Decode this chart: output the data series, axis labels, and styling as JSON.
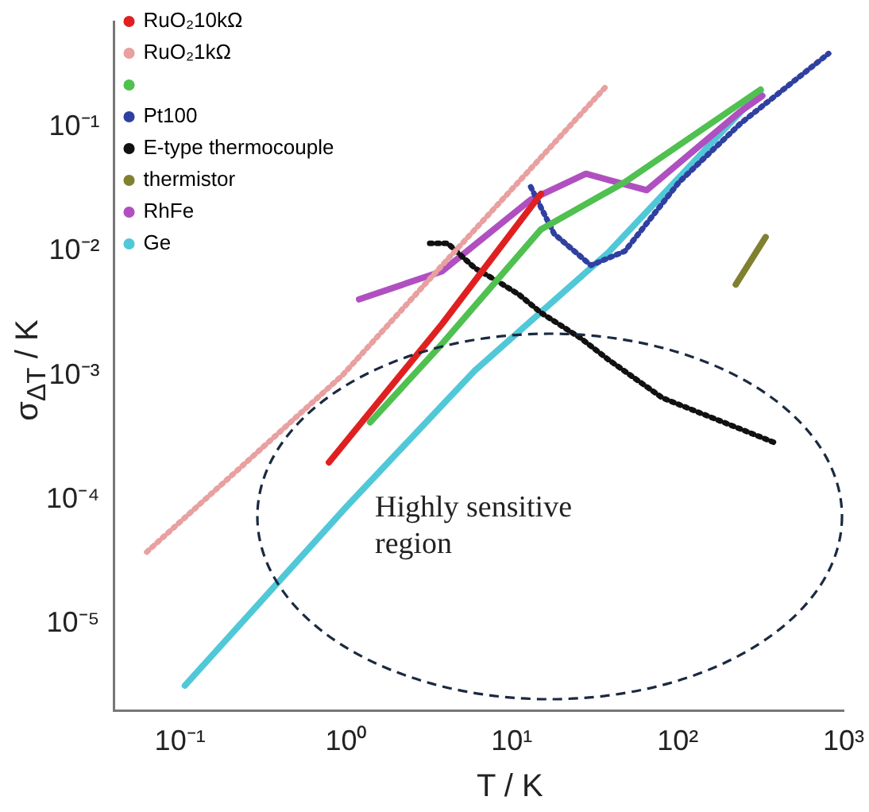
{
  "chart_data": {
    "type": "line",
    "xlabel": "T / K",
    "ylabel": "σ$_{ΔT}$ / K",
    "log": "xy",
    "legend": "top left",
    "xlim": [
      0.04,
      1000
    ],
    "ylim": [
      2e-06,
      0.7
    ],
    "xticks": [
      {
        "value": 0.1,
        "label": "10⁻¹"
      },
      {
        "value": 1,
        "label": "10⁰"
      },
      {
        "value": 10,
        "label": "10¹"
      },
      {
        "value": 100,
        "label": "10²"
      },
      {
        "value": 1000,
        "label": "10³"
      }
    ],
    "yticks": [
      {
        "value": 1e-05,
        "label": "10⁻⁵"
      },
      {
        "value": 0.0001,
        "label": "10⁻⁴"
      },
      {
        "value": 0.001,
        "label": "10⁻³"
      },
      {
        "value": 0.01,
        "label": "10⁻²"
      },
      {
        "value": 0.1,
        "label": "10⁻¹"
      }
    ],
    "annotations": [
      "Highly sensitive region"
    ],
    "series": [
      {
        "name": "RuO₂10kΩ",
        "color": "#e02020",
        "x": [
          0.79,
          3.8,
          15
        ],
        "values": [
          0.0002,
          0.0026,
          0.029
        ]
      },
      {
        "name": "RuO₂1kΩ",
        "color": "#e8a0a0",
        "line_style": "dotted",
        "x": [
          0.063,
          0.24,
          0.95,
          3.8,
          38
        ],
        "values": [
          3.8e-05,
          0.00019,
          0.001,
          0.0077,
          0.22
        ]
      },
      {
        "color": "#50c050",
        "x": [
          1.4,
          3.8,
          15,
          48,
          316
        ],
        "values": [
          0.00042,
          0.0018,
          0.015,
          0.036,
          0.2
        ]
      },
      {
        "name": "Pt100",
        "color": "#3040a0",
        "line_style": "dotted",
        "x": [
          13,
          18,
          30,
          48,
          102,
          240,
          813
        ],
        "values": [
          0.033,
          0.0138,
          0.0077,
          0.01,
          0.036,
          0.107,
          0.39
        ]
      },
      {
        "name": "E-type thermocouple",
        "color": "#111111",
        "line_style": "dotted",
        "x": [
          3.2,
          4.1,
          6,
          8.1,
          11,
          15,
          26,
          38,
          81,
          380
        ],
        "values": [
          0.0116,
          0.0116,
          0.0073,
          0.0058,
          0.0045,
          0.0032,
          0.002,
          0.00135,
          0.00066,
          0.00029
        ]
      },
      {
        "name": "thermistor",
        "color": "#808030",
        "x": [
          224,
          339
        ],
        "values": [
          0.0054,
          0.013
        ]
      },
      {
        "name": "RhFe",
        "color": "#b050c0",
        "x": [
          1.2,
          3.8,
          13,
          28,
          65,
          240,
          324
        ],
        "values": [
          0.0041,
          0.0069,
          0.026,
          0.042,
          0.031,
          0.134,
          0.178
        ]
      },
      {
        "name": "Ge",
        "color": "#50c8d8",
        "x": [
          0.107,
          1,
          6,
          38,
          316
        ],
        "values": [
          3.2e-06,
          8.7e-05,
          0.0011,
          0.0097,
          0.195
        ]
      }
    ]
  }
}
